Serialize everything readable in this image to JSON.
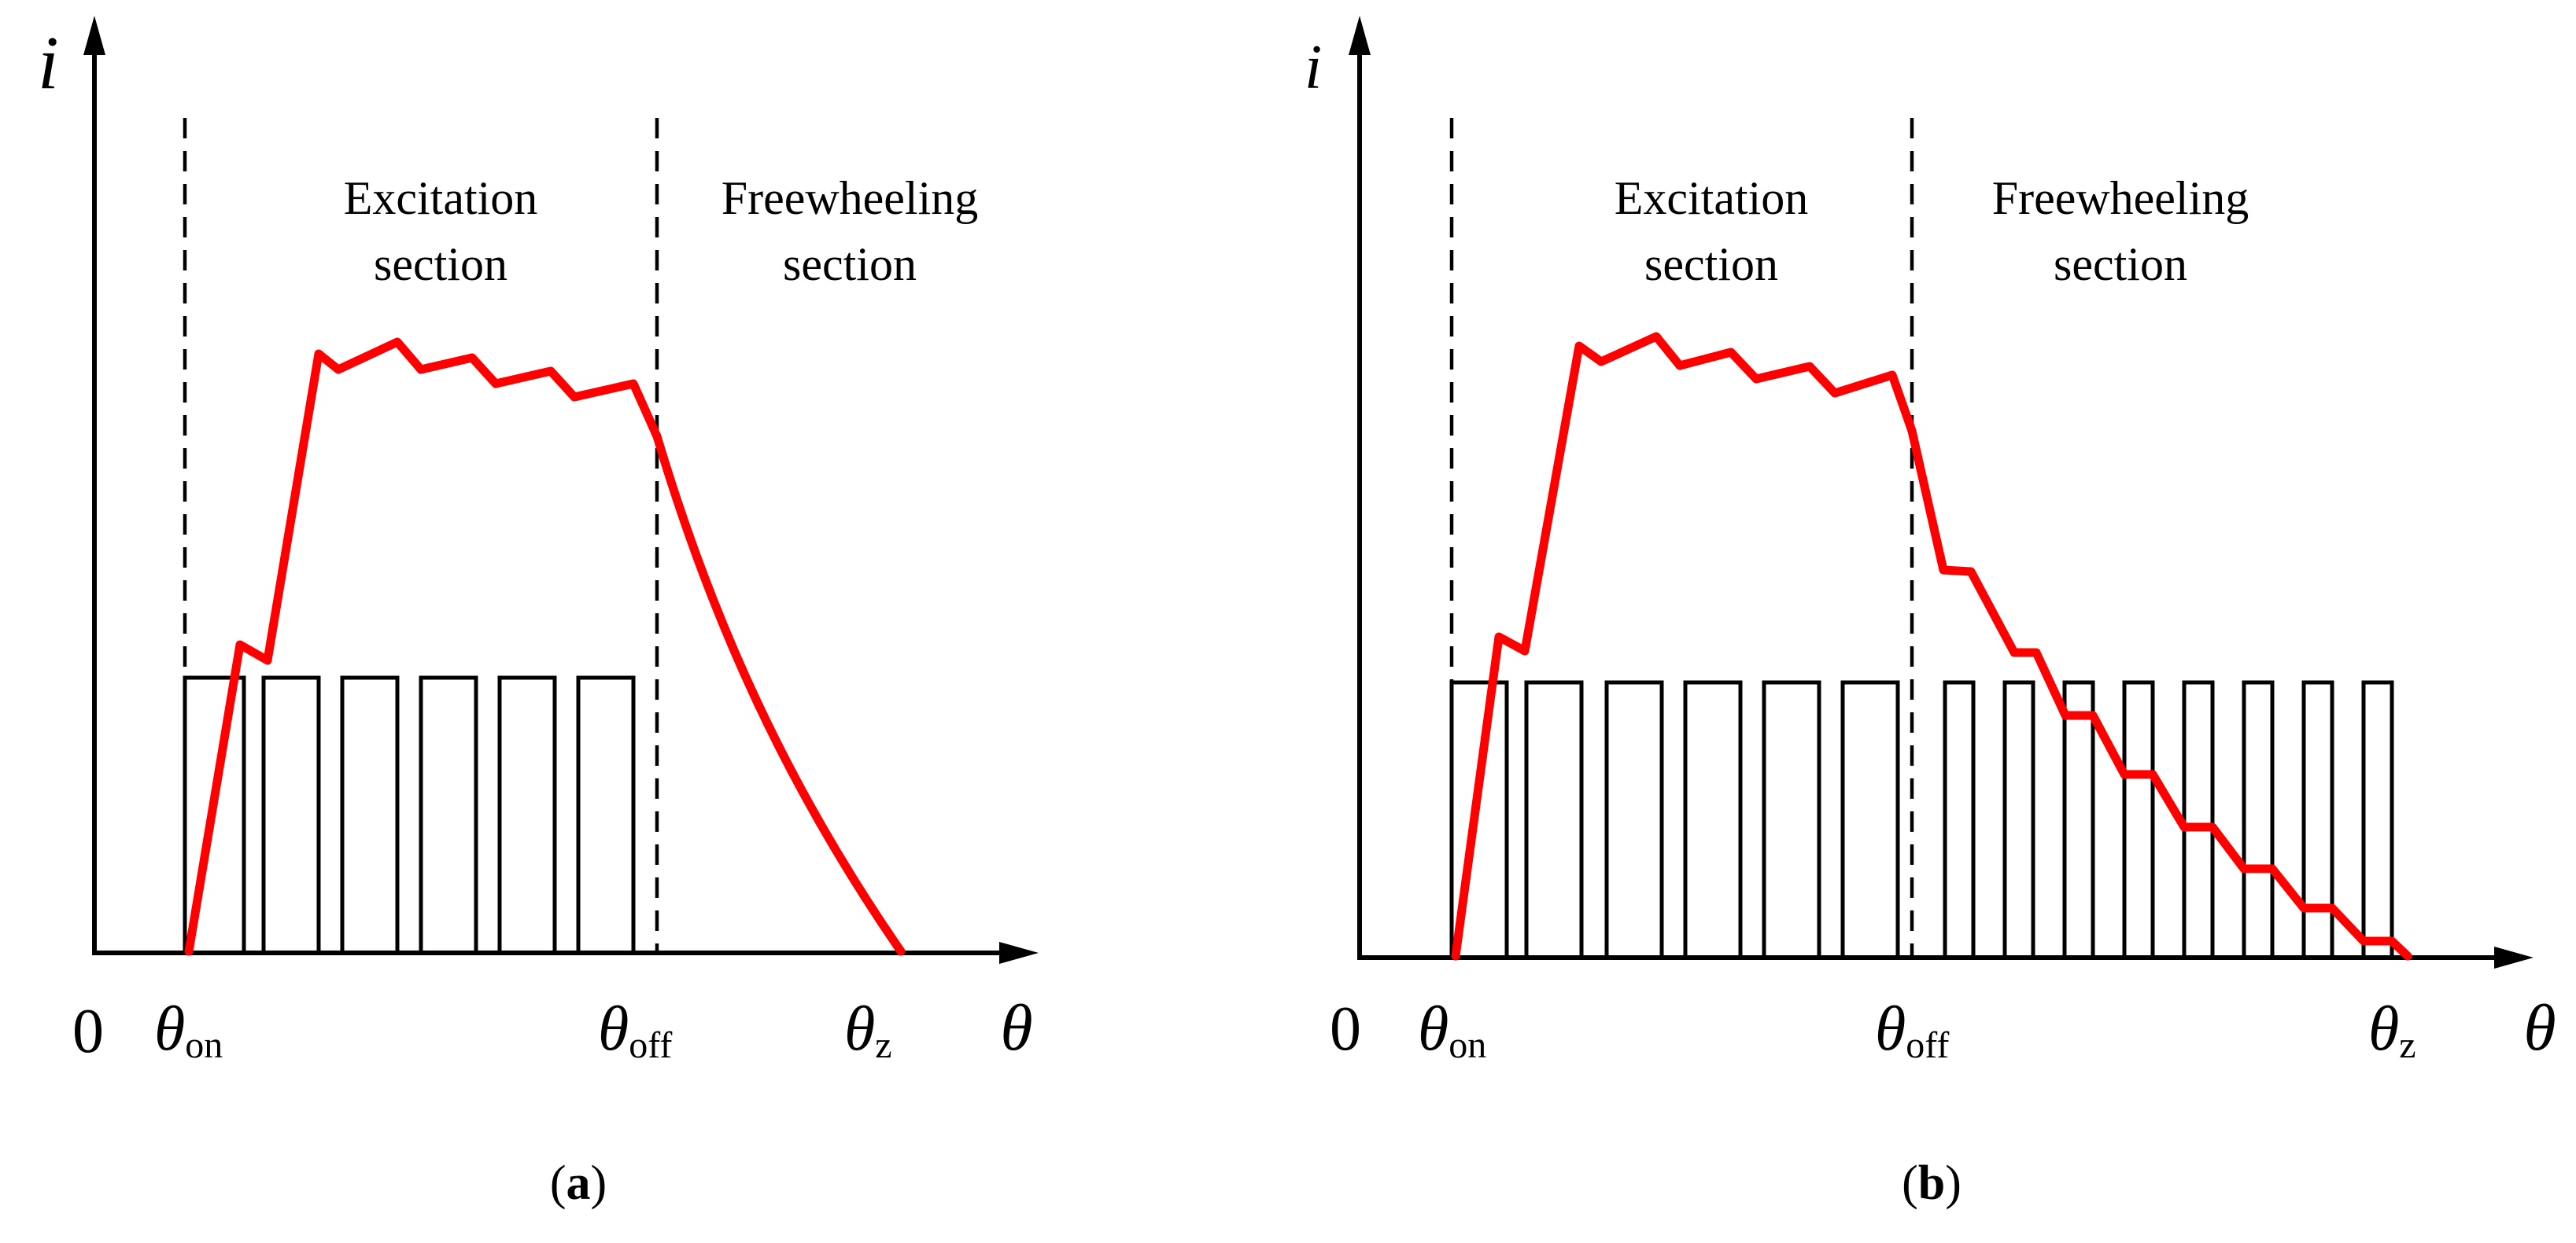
{
  "colors": {
    "current": "#ff0000",
    "lines": "#000000",
    "background": "#ffffff"
  },
  "panels": [
    {
      "id": "a",
      "y_axis_label": "i",
      "origin_label": "0",
      "x_axis_label": "θ",
      "theta_on": {
        "symbol": "θ",
        "sub": "on"
      },
      "theta_off": {
        "symbol": "θ",
        "sub": "off"
      },
      "theta_z": {
        "symbol": "θ",
        "sub": "z"
      },
      "excitation": [
        "Excitation",
        "section"
      ],
      "freewheeling": [
        "Freewheeling",
        "section"
      ],
      "caption_letter": "a",
      "freewheel_current_shape": "smooth decay"
    },
    {
      "id": "b",
      "y_axis_label": "i",
      "origin_label": "0",
      "x_axis_label": "θ",
      "theta_on": {
        "symbol": "θ",
        "sub": "on"
      },
      "theta_off": {
        "symbol": "θ",
        "sub": "off"
      },
      "theta_z": {
        "symbol": "θ",
        "sub": "z"
      },
      "excitation": [
        "Excitation",
        "section"
      ],
      "freewheeling": [
        "Freewheeling",
        "section"
      ],
      "caption_letter": "b",
      "freewheel_current_shape": "chopped staircase decay"
    }
  ]
}
